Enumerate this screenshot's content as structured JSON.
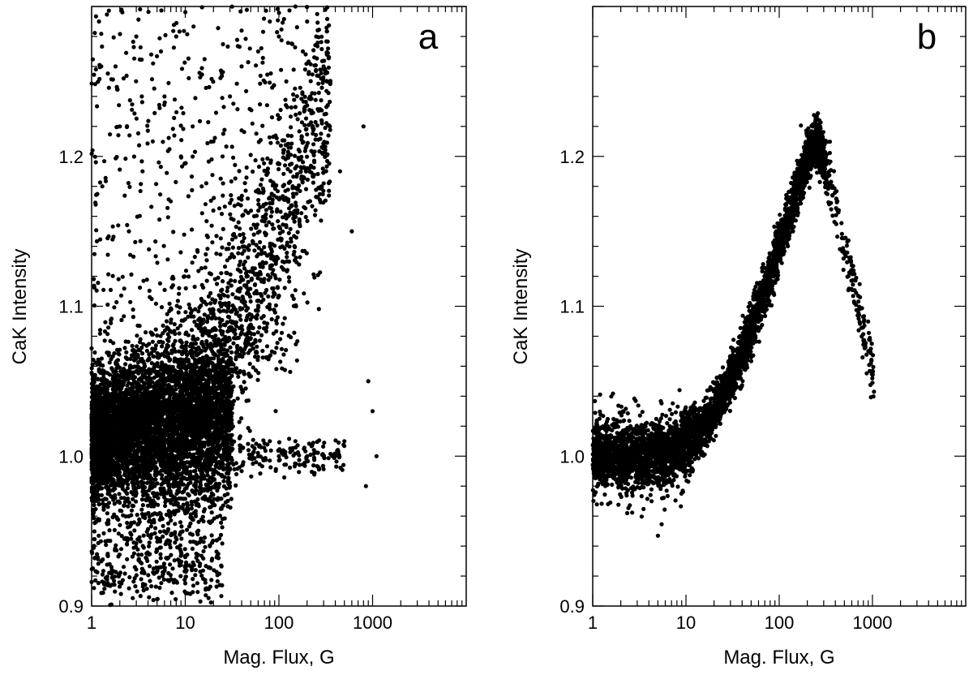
{
  "chart_data": [
    {
      "type": "scatter",
      "panel_label": "a",
      "xlabel": "Mag. Flux, G",
      "ylabel": "CaK Intensity",
      "x_scale": "log",
      "xlim": [
        1,
        10000
      ],
      "ylim": [
        0.9,
        1.3
      ],
      "xticks": [
        1,
        10,
        100,
        1000
      ],
      "xtick_labels": [
        "1",
        "10",
        "100",
        "1000"
      ],
      "yticks": [
        0.9,
        1.0,
        1.1,
        1.2
      ],
      "ytick_labels": [
        "0.9",
        "1.0",
        "1.1",
        "1.2"
      ],
      "grid": false,
      "marker_color": "#000000",
      "description_of_distribution": "dense cloud centered near 1.01 for flux 1-30 G with spread 0.94-1.08; rising upper envelope toward 1.3 at 100-300 G; sparse points up to ~1000 G",
      "points": [
        [
          1.2,
          1.29
        ],
        [
          1.8,
          1.26
        ],
        [
          3.0,
          1.28
        ],
        [
          5.5,
          1.27
        ],
        [
          8.0,
          1.28
        ],
        [
          1.3,
          1.18
        ],
        [
          2.0,
          1.22
        ],
        [
          2.5,
          1.15
        ],
        [
          3.5,
          1.19
        ],
        [
          4.5,
          1.21
        ],
        [
          6.0,
          1.24
        ],
        [
          7.0,
          1.17
        ],
        [
          9.0,
          1.2
        ],
        [
          12,
          1.22
        ],
        [
          15,
          1.18
        ],
        [
          20,
          1.21
        ],
        [
          25,
          1.2
        ],
        [
          30,
          1.24
        ],
        [
          40,
          1.26
        ],
        [
          60,
          1.27
        ],
        [
          80,
          1.29
        ],
        [
          100,
          1.28
        ],
        [
          120,
          1.25
        ],
        [
          150,
          1.3
        ],
        [
          180,
          1.27
        ],
        [
          200,
          1.29
        ],
        [
          250,
          1.28
        ],
        [
          300,
          1.26
        ],
        [
          350,
          1.22
        ],
        [
          450,
          1.19
        ],
        [
          600,
          1.15
        ],
        [
          800,
          1.22
        ],
        [
          900,
          1.05
        ],
        [
          1000,
          1.03
        ],
        [
          1100,
          1.0
        ],
        [
          850,
          0.98
        ],
        [
          500,
          1.01
        ],
        [
          400,
          1.0
        ],
        [
          300,
          1.0
        ],
        [
          200,
          1.0
        ],
        [
          150,
          1.01
        ],
        [
          100,
          1.0
        ],
        [
          80,
          1.01
        ],
        [
          60,
          1.0
        ],
        [
          40,
          0.99
        ],
        [
          30,
          0.98
        ]
      ]
    },
    {
      "type": "scatter",
      "panel_label": "b",
      "xlabel": "Mag. Flux, G",
      "ylabel": "CaK Intensity",
      "x_scale": "log",
      "xlim": [
        1,
        10000
      ],
      "ylim": [
        0.9,
        1.3
      ],
      "xticks": [
        1,
        10,
        100,
        1000
      ],
      "xtick_labels": [
        "1",
        "10",
        "100",
        "1000"
      ],
      "yticks": [
        0.9,
        1.0,
        1.1,
        1.2
      ],
      "ytick_labels": [
        "0.9",
        "1.0",
        "1.1",
        "1.2"
      ],
      "grid": false,
      "marker_color": "#000000",
      "curve": [
        [
          1,
          1.0
        ],
        [
          2,
          1.0
        ],
        [
          4,
          1.002
        ],
        [
          7,
          1.003
        ],
        [
          10,
          1.008
        ],
        [
          15,
          1.018
        ],
        [
          20,
          1.03
        ],
        [
          30,
          1.05
        ],
        [
          50,
          1.085
        ],
        [
          70,
          1.11
        ],
        [
          100,
          1.14
        ],
        [
          150,
          1.175
        ],
        [
          200,
          1.2
        ],
        [
          250,
          1.21
        ],
        [
          300,
          1.2
        ],
        [
          400,
          1.17
        ],
        [
          500,
          1.14
        ],
        [
          600,
          1.12
        ],
        [
          700,
          1.1
        ],
        [
          800,
          1.08
        ],
        [
          900,
          1.07
        ],
        [
          1000,
          1.055
        ]
      ]
    }
  ]
}
